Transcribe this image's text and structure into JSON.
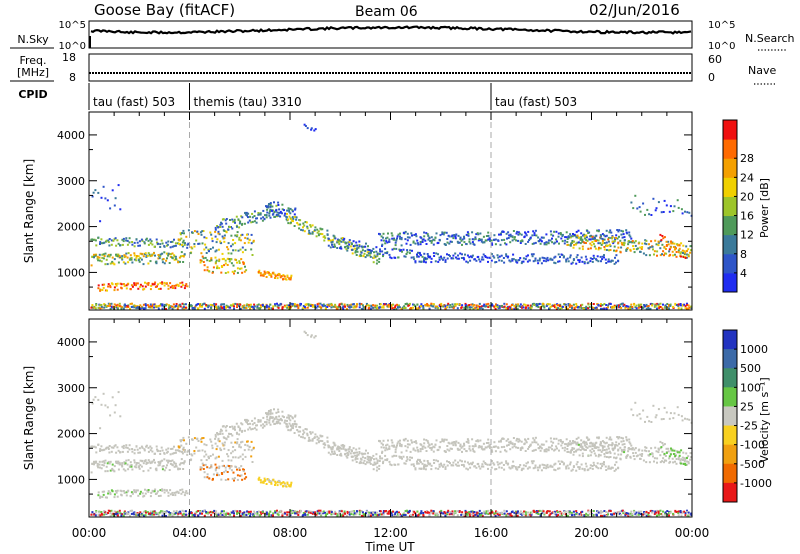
{
  "header": {
    "station": "Goose Bay (fitACF)",
    "beam": "Beam 06",
    "date": "02/Jun/2016"
  },
  "noise_panel": {
    "left_label": "N.Sky",
    "left_ticks": [
      "10^5",
      "10^0"
    ],
    "right_label": "N.Search",
    "right_ticks": [
      "10^5",
      "10^0"
    ]
  },
  "freq_panel": {
    "left_label_line1": "Freq.",
    "left_label_line2": "[MHz]",
    "left_ticks": [
      "18",
      "8"
    ],
    "right_label": "Nave",
    "right_ticks": [
      "60",
      "0"
    ]
  },
  "cpid_panel": {
    "label": "CPID",
    "segments": [
      {
        "start_hour": 0,
        "end_hour": 4.0,
        "text": "tau (fast) 503"
      },
      {
        "start_hour": 4.0,
        "end_hour": 16.0,
        "text": "themis (tau) 3310"
      },
      {
        "start_hour": 16.0,
        "end_hour": 24.0,
        "text": "tau (fast) 503"
      }
    ]
  },
  "chart_data": [
    {
      "type": "heatmap",
      "name": "power",
      "ylabel": "Slant Range [km]",
      "yticks": [
        "1000",
        "2000",
        "3000",
        "4000"
      ],
      "ylim_km": [
        180,
        4500
      ],
      "colorbar_label": "Power [dB]",
      "colorbar_ticks": [
        "4",
        "8",
        "12",
        "16",
        "20",
        "24",
        "28"
      ],
      "colorbar_colors": [
        "#1f2cf0",
        "#2e55c8",
        "#3b7a9a",
        "#4f9a5a",
        "#9dc52a",
        "#f0d000",
        "#f4a000",
        "#ff6a00",
        "#f01010"
      ]
    },
    {
      "type": "heatmap",
      "name": "velocity",
      "ylabel": "Slant Range [km]",
      "yticks": [
        "1000",
        "2000",
        "3000",
        "4000"
      ],
      "ylim_km": [
        180,
        4500
      ],
      "xlabel": "Time UT",
      "xticks": [
        "00:00",
        "04:00",
        "08:00",
        "12:00",
        "16:00",
        "20:00",
        "00:00"
      ],
      "xlim_hours": [
        0,
        24
      ],
      "colorbar_label": "Velocity [m s⁻¹]",
      "colorbar_ticks": [
        "1000",
        "500",
        "100",
        "25",
        "-25",
        "-100",
        "-500",
        "-1000"
      ],
      "colorbar_colors": [
        "#2233c0",
        "#3c6aa8",
        "#3f8f6a",
        "#66c644",
        "#c8c8c0",
        "#f8d020",
        "#f0a010",
        "#f06a00",
        "#e81818"
      ]
    }
  ]
}
